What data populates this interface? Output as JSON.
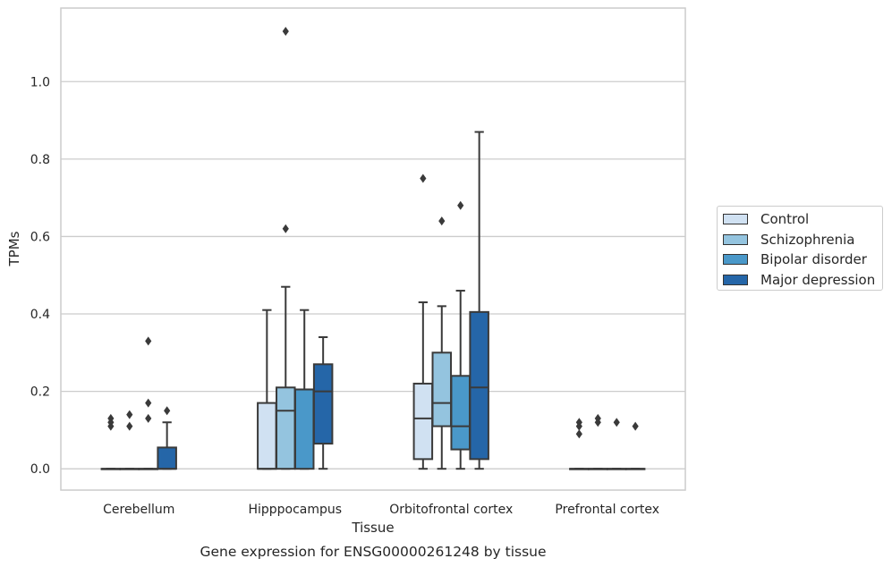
{
  "chart_data": {
    "type": "box",
    "title": "Gene expression for ENSG00000261248 by tissue",
    "xlabel": "Tissue",
    "ylabel": "TPMs",
    "ylim": [
      -0.055,
      1.19
    ],
    "yticks": [
      0.0,
      0.2,
      0.4,
      0.6,
      0.8,
      1.0
    ],
    "ytick_labels": [
      "0.0",
      "0.2",
      "0.4",
      "0.6",
      "0.8",
      "1.0"
    ],
    "grid": "horizontal",
    "legend_position": "right",
    "categories": [
      "Cerebellum",
      "Hipppocampus",
      "Orbitofrontal cortex",
      "Prefrontal cortex"
    ],
    "series": [
      {
        "name": "Control",
        "color": "#d0e1f2",
        "boxes": [
          {
            "whislo": 0,
            "q1": 0,
            "med": 0,
            "q3": 0,
            "whishi": 0,
            "fliers": [
              0.11,
              0.12,
              0.13
            ]
          },
          {
            "whislo": 0,
            "q1": 0,
            "med": 0,
            "q3": 0.17,
            "whishi": 0.41,
            "fliers": []
          },
          {
            "whislo": 0,
            "q1": 0.025,
            "med": 0.13,
            "q3": 0.22,
            "whishi": 0.43,
            "fliers": [
              0.75
            ]
          },
          {
            "whislo": 0,
            "q1": 0,
            "med": 0,
            "q3": 0,
            "whishi": 0,
            "fliers": [
              0.09,
              0.11,
              0.12
            ]
          }
        ]
      },
      {
        "name": "Schizophrenia",
        "color": "#94c4df",
        "boxes": [
          {
            "whislo": 0,
            "q1": 0,
            "med": 0,
            "q3": 0,
            "whishi": 0,
            "fliers": [
              0.11,
              0.14
            ]
          },
          {
            "whislo": 0,
            "q1": 0,
            "med": 0.15,
            "q3": 0.21,
            "whishi": 0.47,
            "fliers": [
              0.62,
              1.13
            ]
          },
          {
            "whislo": 0,
            "q1": 0.11,
            "med": 0.17,
            "q3": 0.3,
            "whishi": 0.42,
            "fliers": [
              0.64
            ]
          },
          {
            "whislo": 0,
            "q1": 0,
            "med": 0,
            "q3": 0,
            "whishi": 0,
            "fliers": [
              0.12,
              0.13
            ]
          }
        ]
      },
      {
        "name": "Bipolar disorder",
        "color": "#4a98c9",
        "boxes": [
          {
            "whislo": 0,
            "q1": 0,
            "med": 0,
            "q3": 0,
            "whishi": 0,
            "fliers": [
              0.13,
              0.17,
              0.33
            ]
          },
          {
            "whislo": 0,
            "q1": 0,
            "med": 0.205,
            "q3": 0.205,
            "whishi": 0.41,
            "fliers": []
          },
          {
            "whislo": 0,
            "q1": 0.05,
            "med": 0.11,
            "q3": 0.24,
            "whishi": 0.46,
            "fliers": [
              0.68
            ]
          },
          {
            "whislo": 0,
            "q1": 0,
            "med": 0,
            "q3": 0,
            "whishi": 0,
            "fliers": [
              0.12
            ]
          }
        ]
      },
      {
        "name": "Major depression",
        "color": "#2566a8",
        "boxes": [
          {
            "whislo": 0,
            "q1": 0,
            "med": 0,
            "q3": 0.055,
            "whishi": 0.12,
            "fliers": [
              0.15
            ]
          },
          {
            "whislo": 0,
            "q1": 0.065,
            "med": 0.2,
            "q3": 0.27,
            "whishi": 0.34,
            "fliers": []
          },
          {
            "whislo": 0,
            "q1": 0.025,
            "med": 0.21,
            "q3": 0.405,
            "whishi": 0.87,
            "fliers": []
          },
          {
            "whislo": 0,
            "q1": 0,
            "med": 0,
            "q3": 0,
            "whishi": 0,
            "fliers": [
              0.11
            ]
          }
        ]
      }
    ]
  }
}
